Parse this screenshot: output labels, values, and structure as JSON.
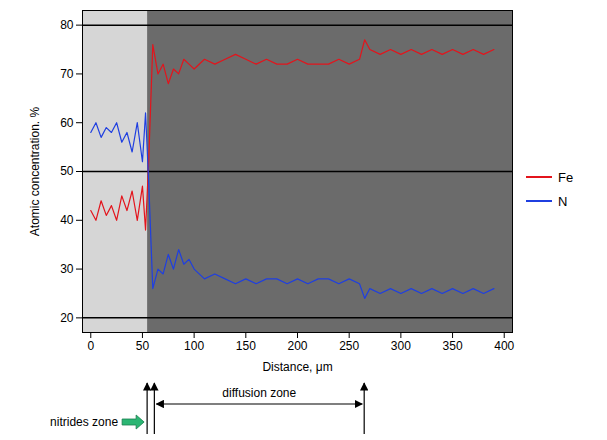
{
  "chart_data": {
    "type": "line",
    "x_label": "Distance, μm",
    "y_label": "Atomic concentration. %",
    "x": [
      0,
      5,
      10,
      15,
      20,
      25,
      30,
      35,
      40,
      45,
      50,
      53,
      56,
      60,
      65,
      70,
      75,
      80,
      85,
      90,
      95,
      100,
      110,
      120,
      130,
      140,
      150,
      160,
      170,
      180,
      190,
      200,
      210,
      220,
      230,
      240,
      250,
      260,
      265,
      270,
      280,
      290,
      300,
      310,
      320,
      330,
      340,
      350,
      360,
      370,
      380,
      390
    ],
    "series": [
      {
        "name": "Fe",
        "color": "#e3141c",
        "values": [
          42,
          40,
          44,
          41,
          43,
          40,
          45,
          42,
          46,
          40,
          47,
          38,
          52,
          76,
          70,
          72,
          68,
          71,
          70,
          73,
          72,
          71,
          73,
          72,
          73,
          74,
          73,
          72,
          73,
          72,
          72,
          73,
          72,
          72,
          72,
          73,
          72,
          73,
          77,
          75,
          74,
          75,
          74,
          75,
          74,
          75,
          74,
          75,
          74,
          75,
          74,
          75
        ]
      },
      {
        "name": "N",
        "color": "#1f3fe0",
        "values": [
          58,
          60,
          57,
          59,
          58,
          60,
          56,
          58,
          54,
          60,
          52,
          62,
          48,
          26,
          30,
          29,
          33,
          30,
          34,
          31,
          32,
          30,
          28,
          29,
          28,
          27,
          28,
          27,
          28,
          28,
          27,
          28,
          27,
          28,
          28,
          27,
          28,
          27,
          24,
          26,
          25,
          26,
          25,
          26,
          25,
          26,
          25,
          26,
          25,
          26,
          25,
          26
        ]
      }
    ],
    "xlim": [
      -8,
      408
    ],
    "xticks": [
      0,
      50,
      100,
      150,
      200,
      250,
      300,
      350,
      400
    ],
    "ylim": [
      17,
      83
    ],
    "yticks": [
      20,
      30,
      40,
      50,
      60,
      70,
      80
    ],
    "reference_lines": [
      20,
      50,
      80
    ],
    "zones": [
      {
        "label": "nitrides zone",
        "start": 0,
        "end": 55
      },
      {
        "label": "diffusion zone",
        "start": 62,
        "end": 265
      }
    ],
    "legend": "right",
    "grid": false
  }
}
